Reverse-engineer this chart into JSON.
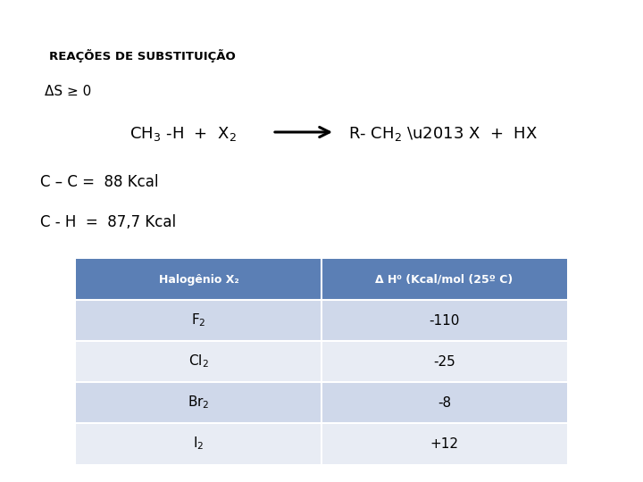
{
  "title": "REAÇÕES DE SUBSTITUIÇÃO",
  "delta_s_line": "ΔS ≥ 0",
  "cc_line": "C – C =  88 Kcal",
  "ch_line": "C - H  =  87,7 Kcal",
  "table_headers": [
    "Halogênio X₂",
    "Δ H⁰ (Kcal/mol (25º C)"
  ],
  "table_rows": [
    [
      "F₂",
      "-110"
    ],
    [
      "Cl₂",
      "-25"
    ],
    [
      "Br₂",
      "-8"
    ],
    [
      "I₂",
      "+12"
    ]
  ],
  "header_bg": "#5b7fb5",
  "row_bg_odd": "#cfd8ea",
  "row_bg_even": "#e8ecf4",
  "header_text_color": "#ffffff",
  "row_text_color": "#000000",
  "background_color": "#ffffff"
}
